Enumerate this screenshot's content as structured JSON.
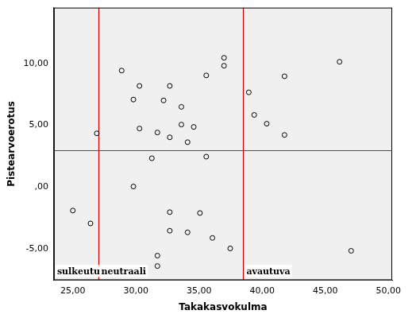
{
  "chart_data": {
    "type": "scatter",
    "x_label": "Takakasvokulma",
    "y_label": "Pistearvoerotus",
    "x": [
      28.87,
      26.9,
      25.0,
      26.4,
      30.28,
      29.8,
      30.28,
      29.8,
      31.7,
      31.26,
      32.68,
      32.19,
      32.68,
      32.68,
      32.68,
      31.7,
      31.7,
      33.6,
      33.6,
      34.58,
      34.09,
      34.09,
      35.57,
      35.57,
      35.07,
      36.06,
      36.98,
      36.98,
      37.47,
      38.94,
      39.37,
      40.36,
      41.77,
      41.77,
      46.13,
      47.05
    ],
    "values": [
      9.42,
      4.35,
      -1.88,
      -2.92,
      8.18,
      7.08,
      4.74,
      0.06,
      4.42,
      2.34,
      8.18,
      7.01,
      4.03,
      -2.01,
      -3.51,
      -5.52,
      -6.36,
      6.49,
      5.06,
      4.87,
      3.64,
      -3.64,
      9.03,
      2.47,
      -2.08,
      -4.09,
      10.45,
      9.81,
      -4.94,
      7.66,
      5.84,
      5.13,
      8.96,
      4.22,
      10.13,
      -5.13
    ],
    "color": "#000000",
    "marker": "circle",
    "xlim": [
      23.5,
      50.3
    ],
    "ylim": [
      -7.5,
      14.5
    ],
    "xticks": [
      {
        "value": 25,
        "label": "25,00"
      },
      {
        "value": 30,
        "label": "30,00"
      },
      {
        "value": 35,
        "label": "35,00"
      },
      {
        "value": 40,
        "label": "40,00"
      },
      {
        "value": 45,
        "label": "45,00"
      },
      {
        "value": 50,
        "label": "50,00"
      }
    ],
    "yticks": [
      {
        "value": -5,
        "label": "-5,00"
      },
      {
        "value": 0,
        "label": ",00"
      },
      {
        "value": 5,
        "label": "5,00"
      },
      {
        "value": 10,
        "label": "10,00"
      }
    ],
    "grid": false,
    "reference_lines": [
      {
        "axis": "x",
        "value": 27,
        "color": "#cc0000"
      },
      {
        "axis": "x",
        "value": 38.5,
        "color": "#cc0000"
      },
      {
        "axis": "y",
        "value": 3,
        "color": "#3344cc"
      }
    ],
    "annotations": [
      {
        "text": "sulkeutuva"
      },
      {
        "text": "neutraali"
      },
      {
        "text": "avautuva"
      }
    ]
  }
}
